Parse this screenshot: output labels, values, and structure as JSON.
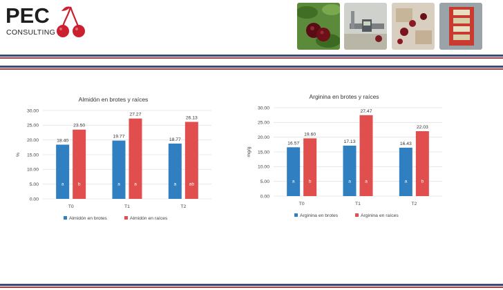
{
  "brand": {
    "name": "PEC",
    "sub": "CONSULTING"
  },
  "colors": {
    "blue": "#2f7fc1",
    "red": "#e04e4e",
    "band_dark": "#3a4a7a",
    "band_red": "#b33a3a",
    "grid": "#e2e2e2",
    "cherry": "#cc1f2f"
  },
  "chart_data": [
    {
      "type": "bar",
      "title": "Almidón en brotes y raíces",
      "ylabel": "%",
      "ylim": [
        0,
        30
      ],
      "yticks": [
        "0.00",
        "5.00",
        "10.00",
        "15.00",
        "20.00",
        "25.00",
        "30.00"
      ],
      "categories": [
        "T0",
        "T1",
        "T2"
      ],
      "series": [
        {
          "name": "Almidón en brotes",
          "values": [
            18.4,
            19.77,
            18.77
          ],
          "labels": [
            "18.40",
            "19.77",
            "18.77"
          ],
          "letters": [
            "a",
            "a",
            "a"
          ]
        },
        {
          "name": "Almidón en raíces",
          "values": [
            23.5,
            27.27,
            26.13
          ],
          "labels": [
            "23.50",
            "27.27",
            "26.13"
          ],
          "letters": [
            "b",
            "a",
            "ab"
          ]
        }
      ],
      "legend": "bottom",
      "grid": true
    },
    {
      "type": "bar",
      "title": "Arginina en brotes y raíces",
      "ylabel": "mg/g",
      "ylim": [
        0,
        30
      ],
      "yticks": [
        "0.00",
        "5.00",
        "10.00",
        "15.00",
        "20.00",
        "25.00",
        "30.00"
      ],
      "categories": [
        "T0",
        "T1",
        "T2"
      ],
      "series": [
        {
          "name": "Arginina en brotes",
          "values": [
            16.57,
            17.13,
            16.43
          ],
          "labels": [
            "16.57",
            "17.13",
            "16.43"
          ],
          "letters": [
            "a",
            "a",
            "a"
          ]
        },
        {
          "name": "Arginina en raíces",
          "values": [
            19.6,
            27.47,
            22.03
          ],
          "labels": [
            "19.60",
            "27.47",
            "22.03"
          ],
          "letters": [
            "b",
            "a",
            "b"
          ]
        }
      ],
      "legend": "bottom",
      "grid": true
    }
  ]
}
